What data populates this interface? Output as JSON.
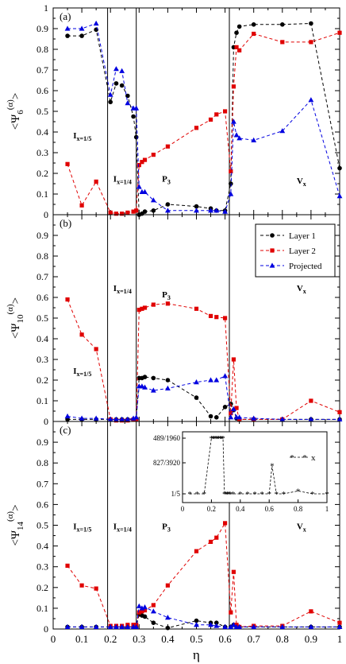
{
  "figure": {
    "xlabel": "η",
    "x_ticks": [
      0,
      0.1,
      0.2,
      0.3,
      0.4,
      0.5,
      0.6,
      0.7,
      0.8,
      0.9,
      1
    ],
    "x_tick_labels": [
      "0",
      "0.1",
      "0.2",
      "0.3",
      "0.4",
      "0.5",
      "0.6",
      "0.7",
      "0.8",
      "0.9",
      "1"
    ],
    "y_ticks": [
      0,
      0.1,
      0.2,
      0.3,
      0.4,
      0.5,
      0.6,
      0.7,
      0.8,
      0.9,
      1
    ],
    "y_tick_labels": [
      "0",
      "0.1",
      "0.2",
      "0.3",
      "0.4",
      "0.5",
      "0.6",
      "0.7",
      "0.8",
      "0.9",
      "1"
    ],
    "phase_boundaries": [
      0.19,
      0.29,
      0.615
    ],
    "legend": [
      "Layer 1",
      "Layer 2",
      "Projected"
    ],
    "colors": {
      "layer1": "#000000",
      "layer2": "#e00000",
      "projected": "#0000e0"
    }
  },
  "chart_data": [
    {
      "type": "line",
      "panel_label": "(a)",
      "ylabel": "<Ψ6(α)>",
      "xlim": [
        0,
        1
      ],
      "ylim": [
        0,
        1
      ],
      "phase_labels": [
        {
          "text": "Ix=1/5",
          "x": 0.07,
          "y": 0.37
        },
        {
          "text": "Ix=1/4",
          "x": 0.21,
          "y": 0.16
        },
        {
          "text": "P3",
          "x": 0.38,
          "y": 0.16
        },
        {
          "text": "Vx",
          "x": 0.85,
          "y": 0.15
        }
      ],
      "series": [
        {
          "name": "Layer 1",
          "x": [
            0.05,
            0.1,
            0.15,
            0.2,
            0.22,
            0.24,
            0.26,
            0.28,
            0.29,
            0.3,
            0.31,
            0.32,
            0.35,
            0.4,
            0.5,
            0.55,
            0.57,
            0.6,
            0.62,
            0.63,
            0.64,
            0.65,
            0.7,
            0.8,
            0.9,
            1.0
          ],
          "y": [
            0.865,
            0.865,
            0.895,
            0.545,
            0.635,
            0.625,
            0.575,
            0.475,
            0.375,
            0.0,
            0.005,
            0.015,
            0.02,
            0.05,
            0.04,
            0.03,
            0.02,
            0.02,
            0.15,
            0.81,
            0.88,
            0.91,
            0.92,
            0.92,
            0.925,
            0.225
          ]
        },
        {
          "name": "Layer 2",
          "x": [
            0.05,
            0.1,
            0.15,
            0.2,
            0.22,
            0.24,
            0.26,
            0.28,
            0.29,
            0.3,
            0.31,
            0.32,
            0.35,
            0.4,
            0.5,
            0.55,
            0.57,
            0.6,
            0.62,
            0.63,
            0.64,
            0.65,
            0.7,
            0.8,
            0.9,
            1.0
          ],
          "y": [
            0.245,
            0.045,
            0.16,
            0.01,
            0.005,
            0.005,
            0.01,
            0.015,
            0.02,
            0.24,
            0.255,
            0.265,
            0.29,
            0.33,
            0.42,
            0.46,
            0.485,
            0.5,
            0.21,
            0.62,
            0.81,
            0.795,
            0.875,
            0.835,
            0.835,
            0.88
          ]
        },
        {
          "name": "Projected",
          "x": [
            0.05,
            0.1,
            0.15,
            0.2,
            0.22,
            0.24,
            0.26,
            0.28,
            0.29,
            0.3,
            0.31,
            0.32,
            0.35,
            0.4,
            0.5,
            0.55,
            0.57,
            0.6,
            0.62,
            0.63,
            0.64,
            0.65,
            0.7,
            0.8,
            0.9,
            1.0
          ],
          "y": [
            0.9,
            0.9,
            0.925,
            0.58,
            0.705,
            0.695,
            0.54,
            0.515,
            0.515,
            0.135,
            0.11,
            0.11,
            0.07,
            0.02,
            0.02,
            0.02,
            0.02,
            0.015,
            0.1,
            0.45,
            0.385,
            0.37,
            0.36,
            0.405,
            0.555,
            0.09
          ]
        }
      ]
    },
    {
      "type": "line",
      "panel_label": "(b)",
      "ylabel": "<Ψ10(α)>",
      "xlim": [
        0,
        1
      ],
      "ylim": [
        0,
        1
      ],
      "phase_labels": [
        {
          "text": "Ix=1/5",
          "x": 0.07,
          "y": 0.23
        },
        {
          "text": "Ix=1/4",
          "x": 0.21,
          "y": 0.63
        },
        {
          "text": "P3",
          "x": 0.38,
          "y": 0.6
        },
        {
          "text": "Vx",
          "x": 0.85,
          "y": 0.63
        }
      ],
      "series": [
        {
          "name": "Layer 1",
          "x": [
            0.05,
            0.1,
            0.15,
            0.2,
            0.22,
            0.24,
            0.26,
            0.28,
            0.29,
            0.3,
            0.31,
            0.32,
            0.35,
            0.4,
            0.5,
            0.55,
            0.57,
            0.6,
            0.62,
            0.63,
            0.64,
            0.65,
            0.7,
            0.8,
            0.9,
            1.0
          ],
          "y": [
            0.01,
            0.01,
            0.01,
            0.01,
            0.01,
            0.01,
            0.01,
            0.01,
            0.01,
            0.21,
            0.21,
            0.215,
            0.21,
            0.2,
            0.115,
            0.025,
            0.02,
            0.07,
            0.085,
            0.055,
            0.015,
            0.01,
            0.01,
            0.01,
            0.01,
            0.01
          ]
        },
        {
          "name": "Layer 2",
          "x": [
            0.05,
            0.1,
            0.15,
            0.2,
            0.22,
            0.24,
            0.26,
            0.28,
            0.29,
            0.3,
            0.31,
            0.32,
            0.35,
            0.4,
            0.5,
            0.55,
            0.57,
            0.6,
            0.62,
            0.63,
            0.64,
            0.65,
            0.7,
            0.8,
            0.9,
            1.0
          ],
          "y": [
            0.59,
            0.42,
            0.35,
            0.01,
            0.005,
            0.005,
            0.005,
            0.01,
            0.01,
            0.54,
            0.545,
            0.55,
            0.565,
            0.57,
            0.545,
            0.51,
            0.505,
            0.5,
            0.04,
            0.3,
            0.065,
            0.01,
            0.01,
            0.01,
            0.1,
            0.045
          ]
        },
        {
          "name": "Projected",
          "x": [
            0.05,
            0.1,
            0.15,
            0.2,
            0.22,
            0.24,
            0.26,
            0.28,
            0.29,
            0.3,
            0.31,
            0.32,
            0.35,
            0.4,
            0.5,
            0.55,
            0.57,
            0.6,
            0.62,
            0.63,
            0.64,
            0.65,
            0.7,
            0.8,
            0.9,
            1.0
          ],
          "y": [
            0.025,
            0.015,
            0.015,
            0.01,
            0.01,
            0.01,
            0.01,
            0.015,
            0.02,
            0.17,
            0.17,
            0.165,
            0.15,
            0.16,
            0.19,
            0.2,
            0.2,
            0.22,
            0.02,
            0.06,
            0.02,
            0.02,
            0.015,
            0.01,
            0.01,
            0.01
          ]
        }
      ]
    },
    {
      "type": "line",
      "panel_label": "(c)",
      "ylabel": "<Ψ14(α)>",
      "xlim": [
        0,
        1
      ],
      "ylim": [
        0,
        1
      ],
      "phase_labels": [
        {
          "text": "Ix=1/5",
          "x": 0.07,
          "y": 0.48
        },
        {
          "text": "Ix=1/4",
          "x": 0.21,
          "y": 0.48
        },
        {
          "text": "P3",
          "x": 0.38,
          "y": 0.48
        },
        {
          "text": "Vx",
          "x": 0.85,
          "y": 0.48
        }
      ],
      "series": [
        {
          "name": "Layer 1",
          "x": [
            0.05,
            0.1,
            0.15,
            0.2,
            0.22,
            0.24,
            0.26,
            0.28,
            0.29,
            0.3,
            0.31,
            0.32,
            0.35,
            0.4,
            0.5,
            0.55,
            0.57,
            0.6,
            0.62,
            0.63,
            0.64,
            0.65,
            0.7,
            0.8,
            0.9,
            1.0
          ],
          "y": [
            0.01,
            0.01,
            0.01,
            0.01,
            0.01,
            0.01,
            0.01,
            0.01,
            0.01,
            0.07,
            0.065,
            0.06,
            0.03,
            0.005,
            0.04,
            0.03,
            0.03,
            0.01,
            0.01,
            0.02,
            0.01,
            0.01,
            0.01,
            0.01,
            0.01,
            0.01
          ]
        },
        {
          "name": "Layer 2",
          "x": [
            0.05,
            0.1,
            0.15,
            0.2,
            0.22,
            0.24,
            0.26,
            0.28,
            0.29,
            0.3,
            0.31,
            0.32,
            0.35,
            0.4,
            0.5,
            0.55,
            0.57,
            0.6,
            0.62,
            0.63,
            0.64,
            0.65,
            0.7,
            0.8,
            0.9,
            1.0
          ],
          "y": [
            0.305,
            0.21,
            0.195,
            0.015,
            0.015,
            0.015,
            0.02,
            0.02,
            0.02,
            0.08,
            0.085,
            0.09,
            0.115,
            0.21,
            0.375,
            0.42,
            0.44,
            0.51,
            0.08,
            0.275,
            0.02,
            0.01,
            0.015,
            0.015,
            0.085,
            0.03
          ]
        },
        {
          "name": "Projected",
          "x": [
            0.05,
            0.1,
            0.15,
            0.2,
            0.22,
            0.24,
            0.26,
            0.28,
            0.29,
            0.3,
            0.31,
            0.32,
            0.35,
            0.4,
            0.5,
            0.55,
            0.57,
            0.6,
            0.62,
            0.63,
            0.64,
            0.65,
            0.7,
            0.8,
            0.9,
            1.0
          ],
          "y": [
            0.01,
            0.01,
            0.01,
            0.01,
            0.01,
            0.01,
            0.01,
            0.01,
            0.01,
            0.11,
            0.1,
            0.105,
            0.085,
            0.055,
            0.02,
            0.02,
            0.015,
            0.01,
            0.01,
            0.02,
            0.01,
            0.01,
            0.01,
            0.01,
            0.01,
            0.01
          ]
        }
      ]
    },
    {
      "type": "scatter",
      "role": "inset",
      "xlim": [
        0,
        1
      ],
      "x_ticks": [
        0,
        0.2,
        0.4,
        0.6,
        0.8,
        1
      ],
      "x_tick_labels": [
        "0",
        "0.2",
        "0.4",
        "0.6",
        "0.8",
        "1"
      ],
      "y_levels": [
        0.2,
        0.210969,
        0.24949
      ],
      "y_tick_labels": [
        "1/5",
        "827/3920",
        "489/1960"
      ],
      "legend": "x",
      "series": [
        {
          "name": "x",
          "x": [
            0.05,
            0.1,
            0.15,
            0.2,
            0.21,
            0.22,
            0.23,
            0.24,
            0.25,
            0.26,
            0.27,
            0.28,
            0.29,
            0.3,
            0.31,
            0.32,
            0.33,
            0.35,
            0.4,
            0.45,
            0.5,
            0.55,
            0.6,
            0.62,
            0.65,
            0.7,
            0.8,
            0.9,
            1.0
          ],
          "y": [
            0.2,
            0.2,
            0.2,
            0.24949,
            0.24949,
            0.24949,
            0.24949,
            0.24949,
            0.24949,
            0.24949,
            0.24949,
            0.24949,
            0.2,
            0.2,
            0.2,
            0.2,
            0.2,
            0.2,
            0.2,
            0.2,
            0.2,
            0.2,
            0.2,
            0.21,
            0.2,
            0.2,
            0.201,
            0.2,
            0.2
          ]
        }
      ]
    }
  ]
}
